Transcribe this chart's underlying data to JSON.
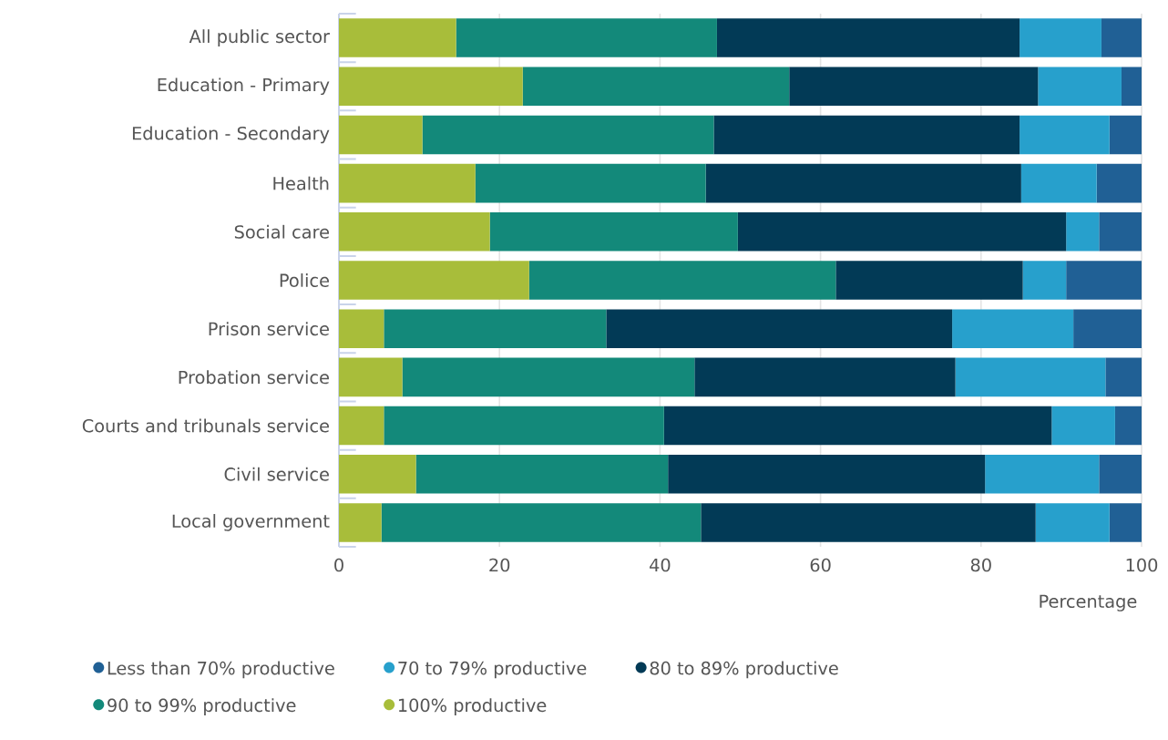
{
  "chart_data": {
    "type": "bar",
    "orientation": "horizontal",
    "stacked": true,
    "xlabel": "Percentage",
    "categories": [
      "All public sector",
      "Education - Primary",
      "Education - Secondary",
      "Health",
      "Social care",
      "Police",
      "Prison service",
      "Probation service",
      "Courts and tribunals service",
      "Civil service",
      "Local government"
    ],
    "series": [
      {
        "name": "100% productive",
        "color": "#a8bd3a",
        "values": [
          14.6,
          22.9,
          10.4,
          17.0,
          18.8,
          23.7,
          5.6,
          7.9,
          5.6,
          9.6,
          5.3
        ]
      },
      {
        "name": "90 to 99% productive",
        "color": "#13897a",
        "values": [
          32.5,
          33.2,
          36.3,
          28.7,
          30.9,
          38.2,
          27.7,
          36.4,
          34.9,
          31.4,
          39.8
        ]
      },
      {
        "name": "80 to 89% productive",
        "color": "#023a56",
        "values": [
          37.7,
          31.0,
          38.1,
          39.3,
          40.9,
          23.3,
          43.1,
          32.5,
          48.3,
          39.5,
          41.7
        ]
      },
      {
        "name": "70 to 79% productive",
        "color": "#27a0cc",
        "values": [
          10.2,
          10.4,
          11.2,
          9.4,
          4.1,
          5.4,
          15.1,
          18.7,
          7.9,
          14.2,
          9.2
        ]
      },
      {
        "name": "Less than 70% productive",
        "color": "#206095",
        "values": [
          5.0,
          2.5,
          4.0,
          5.6,
          5.3,
          9.4,
          8.5,
          4.5,
          3.3,
          5.3,
          4.0
        ]
      }
    ],
    "xlim": [
      0,
      100
    ],
    "xticks": [
      0,
      20,
      40,
      60,
      80,
      100
    ],
    "grid": "x",
    "legend": "bottom"
  }
}
